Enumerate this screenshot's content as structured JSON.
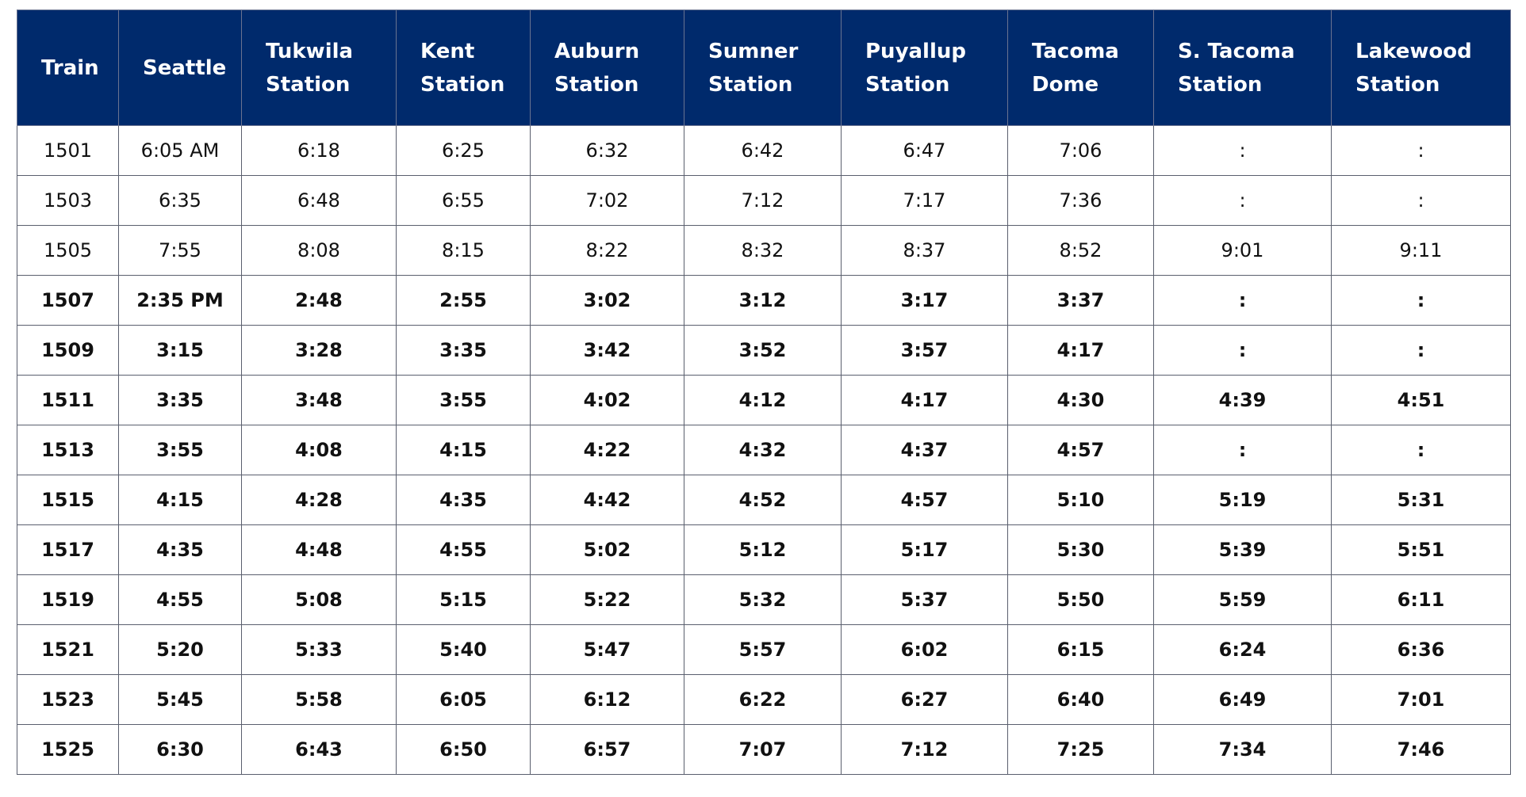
{
  "table": {
    "header": [
      [
        "Train"
      ],
      [
        "Seattle"
      ],
      [
        "Tukwila",
        "Station"
      ],
      [
        "Kent",
        "Station"
      ],
      [
        "Auburn",
        "Station"
      ],
      [
        "Sumner",
        "Station"
      ],
      [
        "Puyallup",
        "Station"
      ],
      [
        "Tacoma",
        "Dome"
      ],
      [
        "S. Tacoma",
        "Station"
      ],
      [
        "Lakewood",
        "Station"
      ]
    ],
    "rows": [
      [
        "1501",
        "6:05 AM",
        "6:18",
        "6:25",
        "6:32",
        "6:42",
        "6:47",
        "7:06",
        ":",
        ":"
      ],
      [
        "1503",
        "6:35",
        "6:48",
        "6:55",
        "7:02",
        "7:12",
        "7:17",
        "7:36",
        ":",
        ":"
      ],
      [
        "1505",
        "7:55",
        "8:08",
        "8:15",
        "8:22",
        "8:32",
        "8:37",
        "8:52",
        "9:01",
        "9:11"
      ],
      [
        "1507",
        "2:35 PM",
        "2:48",
        "2:55",
        "3:02",
        "3:12",
        "3:17",
        "3:37",
        ":",
        ":"
      ],
      [
        "1509",
        "3:15",
        "3:28",
        "3:35",
        "3:42",
        "3:52",
        "3:57",
        "4:17",
        ":",
        ":"
      ],
      [
        "1511",
        "3:35",
        "3:48",
        "3:55",
        "4:02",
        "4:12",
        "4:17",
        "4:30",
        "4:39",
        "4:51"
      ],
      [
        "1513",
        "3:55",
        "4:08",
        "4:15",
        "4:22",
        "4:32",
        "4:37",
        "4:57",
        ":",
        ":"
      ],
      [
        "1515",
        "4:15",
        "4:28",
        "4:35",
        "4:42",
        "4:52",
        "4:57",
        "5:10",
        "5:19",
        "5:31"
      ],
      [
        "1517",
        "4:35",
        "4:48",
        "4:55",
        "5:02",
        "5:12",
        "5:17",
        "5:30",
        "5:39",
        "5:51"
      ],
      [
        "1519",
        "4:55",
        "5:08",
        "5:15",
        "5:22",
        "5:32",
        "5:37",
        "5:50",
        "5:59",
        "6:11"
      ],
      [
        "1521",
        "5:20",
        "5:33",
        "5:40",
        "5:47",
        "5:57",
        "6:02",
        "6:15",
        "6:24",
        "6:36"
      ],
      [
        "1523",
        "5:45",
        "5:58",
        "6:05",
        "6:12",
        "6:22",
        "6:27",
        "6:40",
        "6:49",
        "7:01"
      ],
      [
        "1525",
        "6:30",
        "6:43",
        "6:50",
        "6:57",
        "7:07",
        "7:12",
        "7:25",
        "7:34",
        "7:46"
      ]
    ]
  }
}
